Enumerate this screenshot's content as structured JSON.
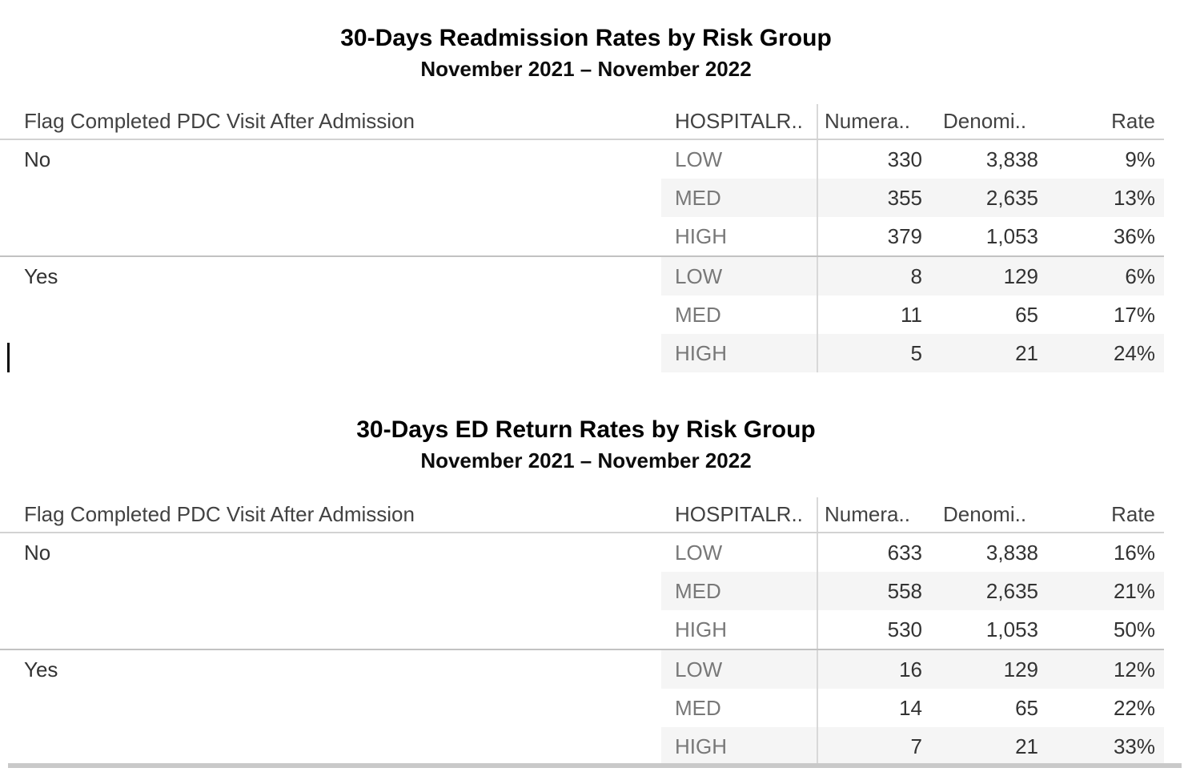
{
  "colors": {
    "row_band": "#f5f5f5",
    "header_rule": "#d2d2d2",
    "group_rule": "#c2c2c2",
    "column_rule": "#d8d8d8",
    "bottom_bar": "#c9c9c9",
    "title_text": "#000000",
    "value_text": "#333333",
    "risk_label_text": "#787878"
  },
  "tables": [
    {
      "title": "30-Days Readmission Rates by Risk Group",
      "subtitle": "November 2021 – November 2022",
      "row_dimension_header": "Flag Completed PDC Visit After Admission",
      "columns": {
        "risk": "HOSPITALR..",
        "numerator": "Numera..",
        "denominator": "Denomi..",
        "rate": "Rate"
      },
      "groups": [
        {
          "flag": "No",
          "rows": [
            {
              "risk": "LOW",
              "numerator": "330",
              "denominator": "3,838",
              "rate": "9%"
            },
            {
              "risk": "MED",
              "numerator": "355",
              "denominator": "2,635",
              "rate": "13%"
            },
            {
              "risk": "HIGH",
              "numerator": "379",
              "denominator": "1,053",
              "rate": "36%"
            }
          ]
        },
        {
          "flag": "Yes",
          "rows": [
            {
              "risk": "LOW",
              "numerator": "8",
              "denominator": "129",
              "rate": "6%"
            },
            {
              "risk": "MED",
              "numerator": "11",
              "denominator": "65",
              "rate": "17%"
            },
            {
              "risk": "HIGH",
              "numerator": "5",
              "denominator": "21",
              "rate": "24%"
            }
          ]
        }
      ]
    },
    {
      "title": "30-Days ED Return Rates by Risk Group",
      "subtitle": "November 2021 – November 2022",
      "row_dimension_header": "Flag Completed PDC Visit After Admission",
      "columns": {
        "risk": "HOSPITALR..",
        "numerator": "Numera..",
        "denominator": "Denomi..",
        "rate": "Rate"
      },
      "groups": [
        {
          "flag": "No",
          "rows": [
            {
              "risk": "LOW",
              "numerator": "633",
              "denominator": "3,838",
              "rate": "16%"
            },
            {
              "risk": "MED",
              "numerator": "558",
              "denominator": "2,635",
              "rate": "21%"
            },
            {
              "risk": "HIGH",
              "numerator": "530",
              "denominator": "1,053",
              "rate": "50%"
            }
          ]
        },
        {
          "flag": "Yes",
          "rows": [
            {
              "risk": "LOW",
              "numerator": "16",
              "denominator": "129",
              "rate": "12%"
            },
            {
              "risk": "MED",
              "numerator": "14",
              "denominator": "65",
              "rate": "22%"
            },
            {
              "risk": "HIGH",
              "numerator": "7",
              "denominator": "21",
              "rate": "33%"
            }
          ]
        }
      ]
    }
  ],
  "chart_data": [
    {
      "type": "table",
      "title": "30-Days Readmission Rates by Risk Group",
      "subtitle": "November 2021 – November 2022",
      "columns": [
        "Flag Completed PDC Visit After Admission",
        "HOSPITALR..",
        "Numera..",
        "Denomi..",
        "Rate"
      ],
      "rows": [
        [
          "No",
          "LOW",
          330,
          3838,
          "9%"
        ],
        [
          "No",
          "MED",
          355,
          2635,
          "13%"
        ],
        [
          "No",
          "HIGH",
          379,
          1053,
          "36%"
        ],
        [
          "Yes",
          "LOW",
          8,
          129,
          "6%"
        ],
        [
          "Yes",
          "MED",
          11,
          65,
          "17%"
        ],
        [
          "Yes",
          "HIGH",
          5,
          21,
          "24%"
        ]
      ]
    },
    {
      "type": "table",
      "title": "30-Days ED Return Rates by Risk Group",
      "subtitle": "November 2021 – November 2022",
      "columns": [
        "Flag Completed PDC Visit After Admission",
        "HOSPITALR..",
        "Numera..",
        "Denomi..",
        "Rate"
      ],
      "rows": [
        [
          "No",
          "LOW",
          633,
          3838,
          "16%"
        ],
        [
          "No",
          "MED",
          558,
          2635,
          "21%"
        ],
        [
          "No",
          "HIGH",
          530,
          1053,
          "50%"
        ],
        [
          "Yes",
          "LOW",
          16,
          129,
          "12%"
        ],
        [
          "Yes",
          "MED",
          14,
          65,
          "22%"
        ],
        [
          "Yes",
          "HIGH",
          7,
          21,
          "33%"
        ]
      ]
    }
  ]
}
